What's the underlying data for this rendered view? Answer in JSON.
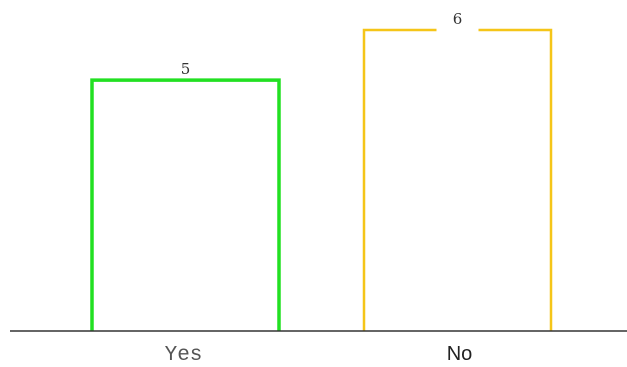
{
  "chart_data": {
    "type": "bar",
    "categories": [
      "Yes",
      "No"
    ],
    "values": [
      5,
      6
    ],
    "value_labels": [
      "5",
      "6"
    ],
    "colors": [
      "#22e022",
      "#f5c518"
    ],
    "baseline_color": "#333333",
    "ylim": [
      0,
      6
    ],
    "grid": false,
    "title": "",
    "xlabel": "",
    "ylabel": ""
  }
}
